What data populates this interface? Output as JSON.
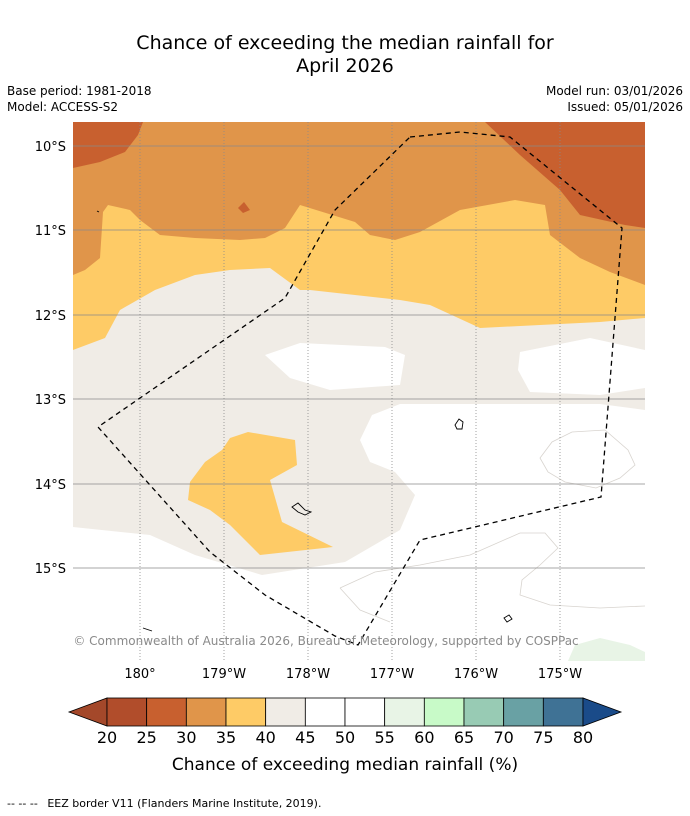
{
  "title": {
    "line1": "Chance of exceeding the median rainfall for",
    "line2": "April 2026"
  },
  "meta": {
    "base_period": "Base period: 1981-2018",
    "model": "Model: ACCESS-S2",
    "model_run": "Model run: 03/01/2026",
    "issued": "Issued: 05/01/2026"
  },
  "map": {
    "copyright": "© Commonwealth of Australia 2026, Bureau of Meteorology, supported by COSPPac",
    "lat_labels": [
      "10°S",
      "11°S",
      "12°S",
      "13°S",
      "14°S",
      "15°S"
    ],
    "lon_labels": [
      "180°",
      "179°W",
      "178°W",
      "177°W",
      "176°W",
      "175°W"
    ],
    "background_color": "#f0ece6"
  },
  "colorbar": {
    "ticks": [
      "20",
      "25",
      "30",
      "35",
      "40",
      "45",
      "50",
      "55",
      "60",
      "65",
      "70",
      "75",
      "80"
    ],
    "colors": [
      "#a4482a",
      "#b14d2b",
      "#c8602f",
      "#e0954a",
      "#fecb66",
      "#f0ece6",
      "#ffffff",
      "#ffffff",
      "#e8f4e6",
      "#c8fac8",
      "#98cbb4",
      "#69a1a4",
      "#3f7295",
      "#1a4b89"
    ],
    "label": "Chance of exceeding median rainfall (%)"
  },
  "legend": {
    "eez_symbol": "--  --  --",
    "eez_label": "EEZ border V11 (Flanders Marine Institute, 2019)."
  }
}
